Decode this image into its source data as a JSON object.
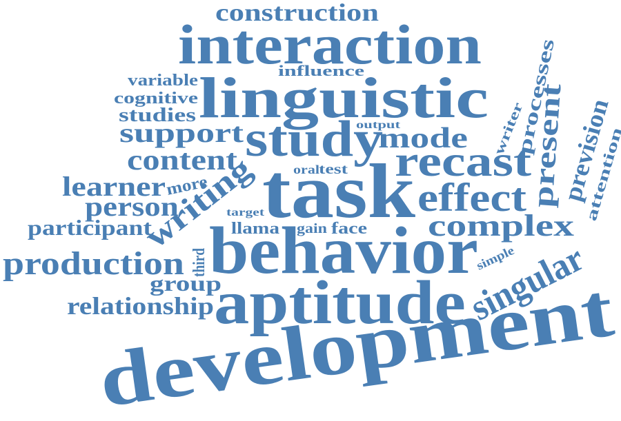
{
  "words": [
    "construction",
    "interaction",
    "influence",
    "variable",
    "linguistic",
    "cognitive",
    "studies",
    "support",
    "output",
    "study",
    "mode",
    "content",
    "recast",
    "oral",
    "test",
    "task",
    "learner",
    "more",
    "person",
    "effect",
    "writing",
    "target",
    "llama",
    "gain",
    "face",
    "participant",
    "complex",
    "behavior",
    "third",
    "production",
    "simple",
    "group",
    "relationship",
    "aptitude",
    "singular",
    "development",
    "processes",
    "writer",
    "present",
    "prevision",
    "attention"
  ]
}
